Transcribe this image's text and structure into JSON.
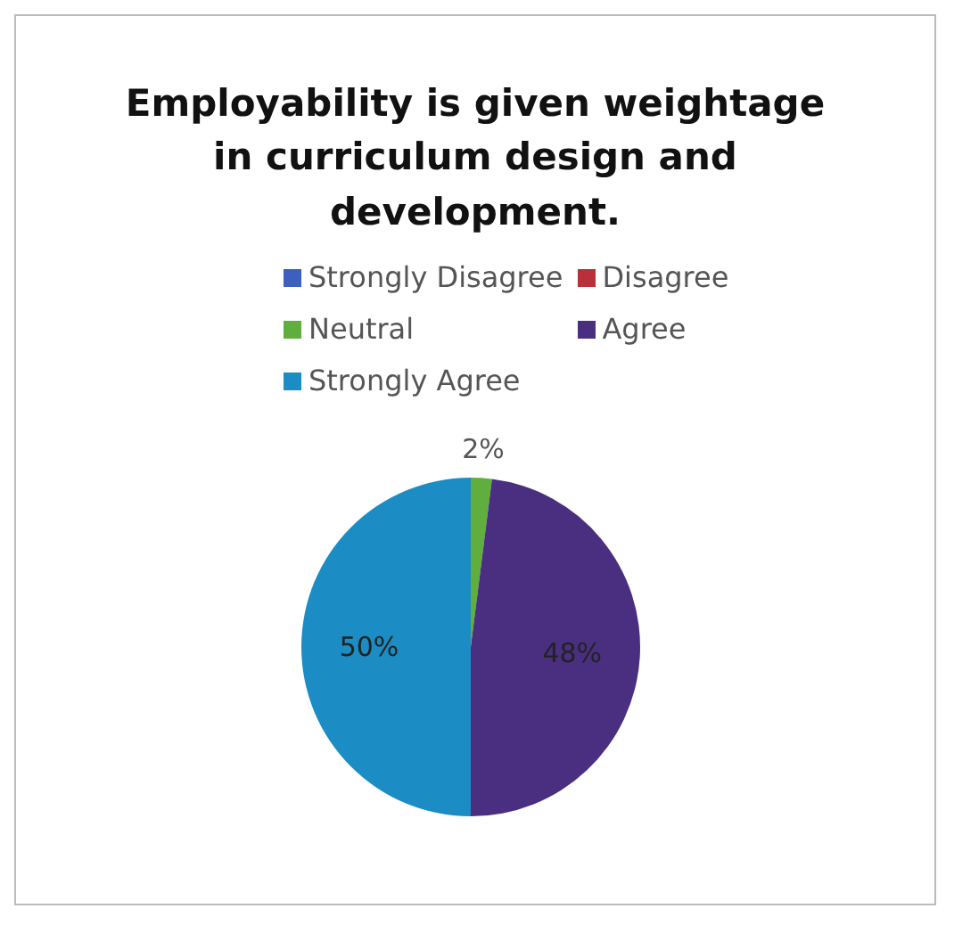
{
  "chart_data": {
    "type": "pie",
    "title": "Employability is given weightage in curriculum design and development.",
    "categories": [
      "Strongly Disagree",
      "Disagree",
      "Neutral",
      "Agree",
      "Strongly Agree"
    ],
    "values": [
      0,
      0,
      2,
      48,
      50
    ],
    "colors": [
      "#3d5fbf",
      "#b8303a",
      "#5fae3e",
      "#4a2f80",
      "#1b8cc4"
    ],
    "value_labels": [
      null,
      null,
      "2%",
      "48%",
      "50%"
    ],
    "legend": "top"
  }
}
